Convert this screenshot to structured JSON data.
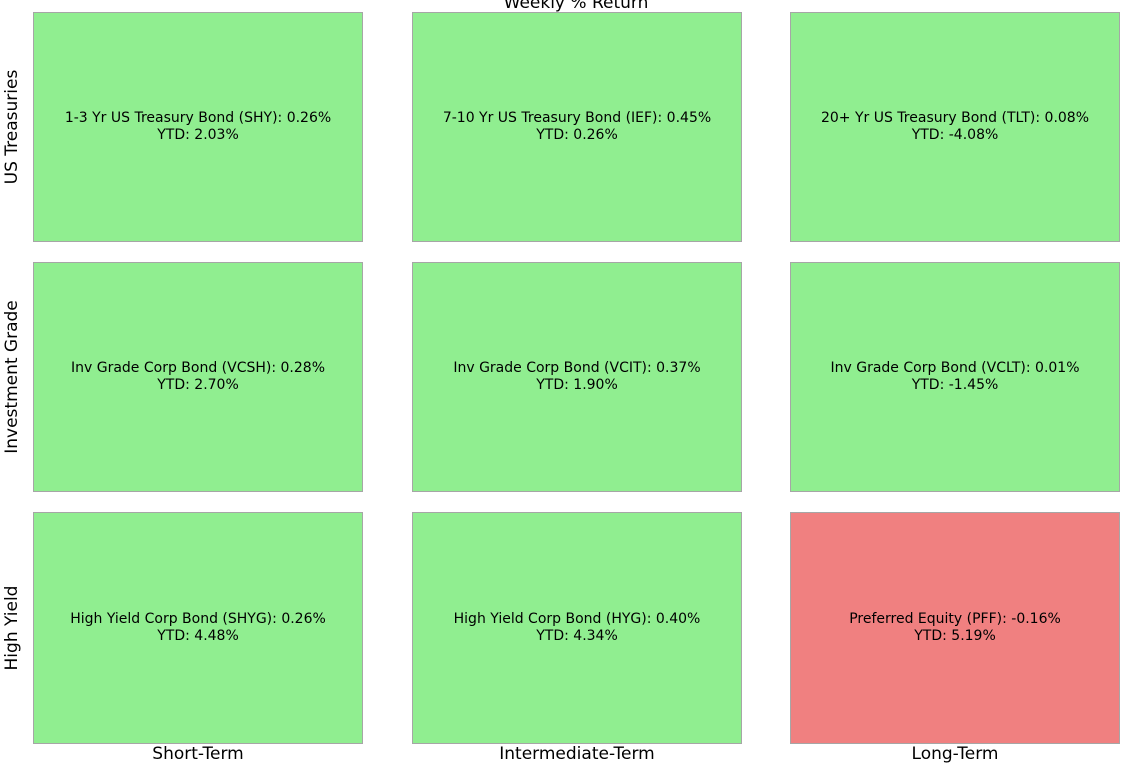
{
  "title": "Weekly % Return",
  "columns": [
    "Short-Term",
    "Intermediate-Term",
    "Long-Term"
  ],
  "grid": {
    "rows": [
      {
        "label": "US Treasuries",
        "cells": [
          {
            "line1": "1-3 Yr US Treasury Bond (SHY): 0.26%",
            "line2": "YTD: 2.03%",
            "color": "#90ee90"
          },
          {
            "line1": "7-10 Yr US Treasury Bond (IEF): 0.45%",
            "line2": "YTD: 0.26%",
            "color": "#90ee90"
          },
          {
            "line1": "20+ Yr US Treasury Bond (TLT): 0.08%",
            "line2": "YTD: -4.08%",
            "color": "#90ee90"
          }
        ]
      },
      {
        "label": "Investment Grade",
        "cells": [
          {
            "line1": "Inv Grade Corp Bond (VCSH): 0.28%",
            "line2": "YTD: 2.70%",
            "color": "#90ee90"
          },
          {
            "line1": "Inv Grade Corp Bond (VCIT): 0.37%",
            "line2": "YTD: 1.90%",
            "color": "#90ee90"
          },
          {
            "line1": "Inv Grade Corp Bond (VCLT): 0.01%",
            "line2": "YTD: -1.45%",
            "color": "#90ee90"
          }
        ]
      },
      {
        "label": "High Yield",
        "cells": [
          {
            "line1": "High Yield Corp Bond (SHYG): 0.26%",
            "line2": "YTD: 4.48%",
            "color": "#90ee90"
          },
          {
            "line1": "High Yield Corp Bond (HYG): 0.40%",
            "line2": "YTD: 4.34%",
            "color": "#90ee90"
          },
          {
            "line1": "Preferred Equity (PFF): -0.16%",
            "line2": "YTD: 5.19%",
            "color": "#f08080"
          }
        ]
      }
    ]
  },
  "chart_data": {
    "type": "heatmap",
    "title": "Weekly % Return",
    "row_labels": [
      "US Treasuries",
      "Investment Grade",
      "High Yield"
    ],
    "column_labels": [
      "Short-Term",
      "Intermediate-Term",
      "Long-Term"
    ],
    "cells": [
      [
        {
          "name": "1-3 Yr US Treasury Bond",
          "ticker": "SHY",
          "weekly_return_pct": 0.26,
          "ytd_return_pct": 2.03
        },
        {
          "name": "7-10 Yr US Treasury Bond",
          "ticker": "IEF",
          "weekly_return_pct": 0.45,
          "ytd_return_pct": 0.26
        },
        {
          "name": "20+ Yr US Treasury Bond",
          "ticker": "TLT",
          "weekly_return_pct": 0.08,
          "ytd_return_pct": -4.08
        }
      ],
      [
        {
          "name": "Inv Grade Corp Bond",
          "ticker": "VCSH",
          "weekly_return_pct": 0.28,
          "ytd_return_pct": 2.7
        },
        {
          "name": "Inv Grade Corp Bond",
          "ticker": "VCIT",
          "weekly_return_pct": 0.37,
          "ytd_return_pct": 1.9
        },
        {
          "name": "Inv Grade Corp Bond",
          "ticker": "VCLT",
          "weekly_return_pct": 0.01,
          "ytd_return_pct": -1.45
        }
      ],
      [
        {
          "name": "High Yield Corp Bond",
          "ticker": "SHYG",
          "weekly_return_pct": 0.26,
          "ytd_return_pct": 4.48
        },
        {
          "name": "High Yield Corp Bond",
          "ticker": "HYG",
          "weekly_return_pct": 0.4,
          "ytd_return_pct": 4.34
        },
        {
          "name": "Preferred Equity",
          "ticker": "PFF",
          "weekly_return_pct": -0.16,
          "ytd_return_pct": 5.19
        }
      ]
    ],
    "color_coding": {
      "positive_weekly": "#90ee90",
      "negative_weekly": "#f08080"
    },
    "legend": "none",
    "grid": false
  }
}
